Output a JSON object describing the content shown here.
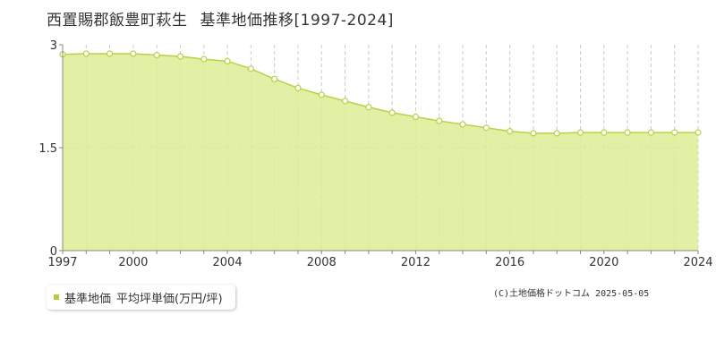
{
  "title": {
    "location": "西置賜郡飯豊町萩生",
    "subject": "基準地価推移[1997-2024]"
  },
  "legend": {
    "marker_color": "#b0d040",
    "label": "基準地価",
    "unit_label": "平均坪単価(万円/坪)"
  },
  "credit": "(C)土地価格ドットコム 2025-05-05",
  "colors": {
    "fill": "#dced94",
    "line": "#b5d444",
    "marker_stroke": "#b5d444",
    "grid": "#cccccc",
    "axis": "#888888"
  },
  "chart_data": {
    "type": "area",
    "x": [
      1997,
      1998,
      1999,
      2000,
      2001,
      2002,
      2003,
      2004,
      2005,
      2006,
      2007,
      2008,
      2009,
      2010,
      2011,
      2012,
      2013,
      2014,
      2015,
      2016,
      2017,
      2018,
      2019,
      2020,
      2021,
      2022,
      2023,
      2024
    ],
    "series": [
      {
        "values": [
          2.86,
          2.87,
          2.87,
          2.87,
          2.85,
          2.83,
          2.79,
          2.76,
          2.65,
          2.5,
          2.37,
          2.27,
          2.18,
          2.09,
          2.01,
          1.95,
          1.89,
          1.84,
          1.79,
          1.74,
          1.71,
          1.71,
          1.72,
          1.72,
          1.72,
          1.72,
          1.72,
          1.72
        ]
      }
    ],
    "xlim": [
      1997,
      2024
    ],
    "ylim": [
      0,
      3
    ],
    "x_tick_labels": [
      "1997",
      "2000",
      "2004",
      "2008",
      "2012",
      "2016",
      "2020",
      "2024"
    ],
    "y_tick_labels": [
      "0",
      "1.5",
      "3"
    ],
    "grid": "vertical dashed lines each year, horizontal dashed line at 1.5"
  }
}
